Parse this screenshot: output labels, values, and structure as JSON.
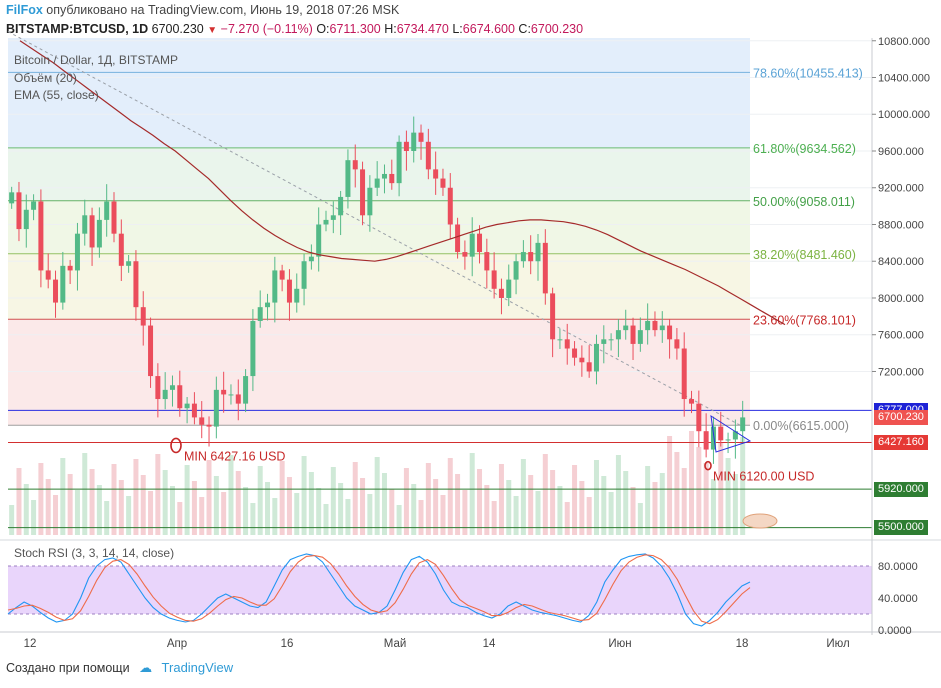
{
  "header": {
    "brand": "FilFox",
    "published": "опубликовано на TradingView.com, Июнь 19, 2018 07:26 MSK",
    "symbol": "BITSTAMP:BTCUSD, 1D",
    "last": "6700.230",
    "change": "−7.270 (−0.11%)",
    "open_label": "O:",
    "open": "6711.300",
    "high_label": "H:",
    "high": "6734.470",
    "low_label": "L:",
    "low": "6674.600",
    "close_label": "C:",
    "close": "6700.230"
  },
  "legend": {
    "title": "Bitcoin / Dollar, 1Д, BITSTAMP",
    "volume": "Объём (20)",
    "ema": "EMA (55, close)",
    "stoch": "Stoch RSI (3, 3, 14, 14, close)"
  },
  "footer": {
    "created": "Создано при помощи",
    "brand": "TradingView"
  },
  "chart_data": {
    "type": "candlestick",
    "x_ticks": [
      "12",
      "Апр",
      "16",
      "Май",
      "14",
      "Июн",
      "18",
      "Июл"
    ],
    "y_ticks": [
      "10800.000",
      "10400.000",
      "10000.000",
      "9600.000",
      "9200.000",
      "8800.000",
      "8400.000",
      "8000.000",
      "7600.000",
      "7200.000"
    ],
    "y_range": [
      5420,
      10830
    ],
    "colors": {
      "up": "#53b987",
      "down": "#eb4d5c",
      "ema": "#a52a2a"
    },
    "ohlc_close_path": [
      9150,
      8750,
      8960,
      9050,
      8300,
      8200,
      7950,
      8350,
      8300,
      8700,
      8900,
      8550,
      8850,
      9050,
      8700,
      8350,
      8400,
      7900,
      7700,
      7150,
      6900,
      7000,
      7050,
      6800,
      6850,
      6700,
      6620,
      6600,
      7000,
      6950,
      6950,
      6850,
      7150,
      7750,
      7900,
      7950,
      8300,
      8200,
      7950,
      8100,
      8400,
      8450,
      8800,
      8850,
      8900,
      9100,
      9500,
      9400,
      8900,
      9200,
      9300,
      9350,
      9250,
      9700,
      9600,
      9800,
      9700,
      9400,
      9300,
      9200,
      8800,
      8500,
      8450,
      8700,
      8500,
      8300,
      8100,
      8000,
      8200,
      8400,
      8500,
      8400,
      8600,
      8050,
      7550,
      7550,
      7450,
      7350,
      7300,
      7200,
      7500,
      7550,
      7550,
      7650,
      7700,
      7500,
      7650,
      7750,
      7650,
      7700,
      7550,
      7450,
      6900,
      6850,
      6550,
      6350,
      6600,
      6450,
      6460,
      6550,
      6700
    ],
    "ema55": [
      10800,
      10720,
      10640,
      10560,
      10470,
      10380,
      10290,
      10200,
      10110,
      10020,
      9930,
      9850,
      9770,
      9680,
      9600,
      9500,
      9400,
      9300,
      9180,
      9060,
      8950,
      8850,
      8760,
      8680,
      8610,
      8550,
      8500,
      8470,
      8450,
      8430,
      8420,
      8410,
      8400,
      8420,
      8450,
      8490,
      8530,
      8570,
      8610,
      8650,
      8690,
      8730,
      8770,
      8800,
      8820,
      8840,
      8850,
      8850,
      8840,
      8830,
      8810,
      8780,
      8740,
      8690,
      8630,
      8570,
      8510,
      8460,
      8410,
      8360,
      8310,
      8250,
      8190,
      8130,
      8060,
      7990,
      7920,
      7850,
      7780,
      7710
    ],
    "fibonacci": [
      {
        "label": "78.60%(10455.413)",
        "value": 10455.413,
        "color": "#5ba3d6"
      },
      {
        "label": "61.80%(9634.562)",
        "value": 9634.562,
        "color": "#4caf50"
      },
      {
        "label": "50.00%(9058.011)",
        "value": 9058.011,
        "color": "#43a047"
      },
      {
        "label": "38.20%(8481.460)",
        "value": 8481.46,
        "color": "#7cb342"
      },
      {
        "label": "23.60%(7768.101)",
        "value": 7768.101,
        "color": "#c62828"
      },
      {
        "label": "0.00%(6615.000)",
        "value": 6615.0,
        "color": "#888888"
      }
    ],
    "annotations": [
      {
        "text": "MIN 6427.16 USD",
        "value": 6427.16,
        "color": "#c62828"
      },
      {
        "text": "MIN 6120.00 USD",
        "value": 6120.0,
        "color": "#c62828"
      }
    ],
    "price_labels": [
      {
        "text": "6777.000",
        "color": "#1e22d6"
      },
      {
        "text": "6700.230",
        "color": "#ef5350"
      },
      {
        "text": "6427.160",
        "color": "#e53935"
      },
      {
        "text": "5920.000",
        "color": "#2e7d32"
      },
      {
        "text": "5500.000",
        "color": "#2e7d32"
      }
    ],
    "stoch_rsi": {
      "y_ticks": [
        "80.0000",
        "40.0000",
        "0.0000"
      ],
      "range": [
        0,
        100
      ],
      "band": [
        20,
        80
      ],
      "k": [
        20,
        28,
        35,
        30,
        22,
        15,
        10,
        12,
        20,
        40,
        65,
        80,
        88,
        90,
        85,
        70,
        55,
        40,
        28,
        20,
        15,
        12,
        10,
        12,
        20,
        30,
        40,
        45,
        40,
        35,
        30,
        28,
        35,
        55,
        75,
        88,
        92,
        95,
        93,
        85,
        70,
        55,
        40,
        30,
        25,
        20,
        22,
        30,
        50,
        72,
        88,
        92,
        85,
        70,
        50,
        35,
        30,
        28,
        22,
        18,
        15,
        20,
        30,
        35,
        30,
        25,
        22,
        20,
        18,
        15,
        12,
        10,
        18,
        35,
        60,
        75,
        88,
        92,
        94,
        95,
        90,
        80,
        65,
        45,
        20,
        8,
        5,
        12,
        22,
        35,
        45,
        55,
        60
      ],
      "d": [
        25,
        27,
        30,
        31,
        27,
        22,
        16,
        12,
        14,
        24,
        42,
        62,
        78,
        86,
        88,
        82,
        70,
        55,
        41,
        30,
        21,
        16,
        12,
        11,
        14,
        21,
        30,
        38,
        42,
        40,
        35,
        31,
        31,
        39,
        55,
        73,
        85,
        92,
        93,
        91,
        83,
        70,
        55,
        42,
        32,
        25,
        22,
        24,
        34,
        51,
        70,
        84,
        88,
        82,
        68,
        52,
        38,
        31,
        27,
        23,
        18,
        18,
        22,
        28,
        32,
        30,
        26,
        22,
        20,
        18,
        15,
        12,
        13,
        21,
        38,
        57,
        74,
        85,
        91,
        94,
        93,
        88,
        78,
        63,
        43,
        24,
        11,
        8,
        13,
        23,
        34,
        45,
        53
      ]
    }
  }
}
